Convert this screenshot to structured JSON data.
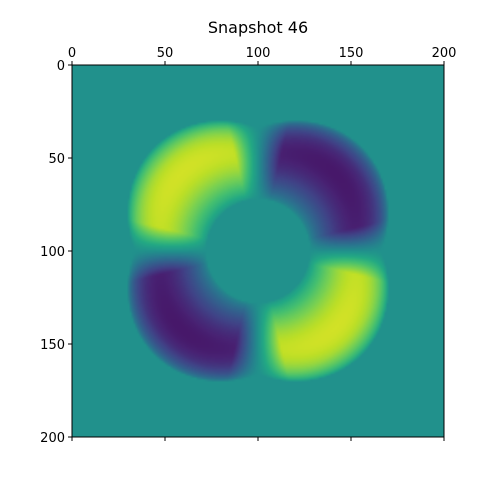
{
  "chart_data": {
    "type": "heatmap",
    "title": "Snapshot 46",
    "xlabel": "",
    "ylabel": "",
    "xlim": [
      0,
      200
    ],
    "ylim": [
      200,
      0
    ],
    "x_ticks": [
      "0",
      "50",
      "100",
      "150",
      "200"
    ],
    "y_ticks": [
      "0",
      "50",
      "100",
      "150",
      "200"
    ],
    "x_axis_position": "top",
    "colormap": "viridis",
    "grid": false,
    "background_value": 0.5,
    "description_values": {
      "lobe_centers": [
        {
          "x": 75,
          "y": 75,
          "value": 1.0
        },
        {
          "x": 125,
          "y": 75,
          "value": 0.0
        },
        {
          "x": 75,
          "y": 125,
          "value": 0.0
        },
        {
          "x": 125,
          "y": 125,
          "value": 1.0
        }
      ],
      "pattern_center": [
        100,
        100
      ],
      "ring_radius": 45
    }
  },
  "colors": {
    "background_field": "#21918c",
    "high": "#fde725",
    "low": "#440154",
    "axis": "#000000"
  }
}
